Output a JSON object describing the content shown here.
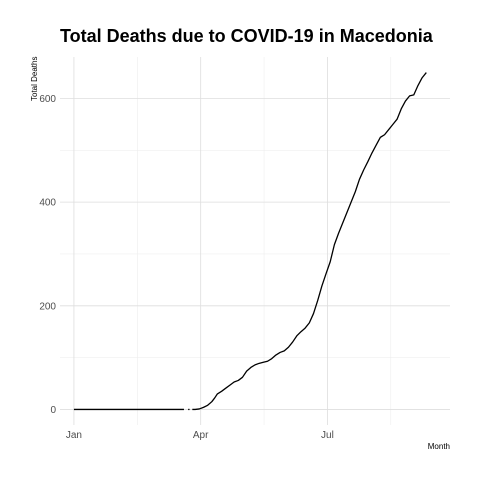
{
  "chart_data": {
    "type": "line",
    "title": "Total Deaths due to COVID-19 in Macedonia",
    "xlabel": "Month",
    "ylabel": "Total Deaths",
    "x_tick_labels": [
      "Jan",
      "Apr",
      "Jul"
    ],
    "x_ticks": [
      "2020-01-01",
      "2020-04-01",
      "2020-07-01"
    ],
    "y_ticks": [
      0,
      200,
      400,
      600
    ],
    "ylim": [
      -30,
      680
    ],
    "xlim": [
      "2019-12-22",
      "2020-09-27"
    ],
    "grid": true,
    "legend": "none",
    "series": [
      {
        "color": "#000000",
        "segments": [
          [
            [
              "2020-01-01",
              0
            ],
            [
              "2020-03-20",
              0
            ]
          ],
          [
            [
              "2020-03-23",
              0
            ],
            [
              "2020-03-24",
              0
            ]
          ],
          [
            [
              "2020-03-26",
              0
            ],
            [
              "2020-03-28",
              0
            ],
            [
              "2020-03-31",
              1
            ],
            [
              "2020-04-03",
              4
            ],
            [
              "2020-04-06",
              8
            ],
            [
              "2020-04-09",
              15
            ],
            [
              "2020-04-11",
              22
            ],
            [
              "2020-04-13",
              30
            ],
            [
              "2020-04-16",
              35
            ],
            [
              "2020-04-19",
              41
            ],
            [
              "2020-04-22",
              47
            ],
            [
              "2020-04-25",
              53
            ],
            [
              "2020-04-28",
              56
            ],
            [
              "2020-05-01",
              62
            ],
            [
              "2020-05-04",
              74
            ],
            [
              "2020-05-07",
              81
            ],
            [
              "2020-05-10",
              86
            ],
            [
              "2020-05-13",
              89
            ],
            [
              "2020-05-16",
              91
            ],
            [
              "2020-05-19",
              93
            ],
            [
              "2020-05-22",
              98
            ],
            [
              "2020-05-25",
              105
            ],
            [
              "2020-05-28",
              110
            ],
            [
              "2020-05-31",
              113
            ],
            [
              "2020-06-03",
              120
            ],
            [
              "2020-06-06",
              130
            ],
            [
              "2020-06-09",
              142
            ],
            [
              "2020-06-12",
              150
            ],
            [
              "2020-06-15",
              157
            ],
            [
              "2020-06-18",
              167
            ],
            [
              "2020-06-21",
              185
            ],
            [
              "2020-06-24",
              210
            ],
            [
              "2020-06-27",
              238
            ],
            [
              "2020-06-30",
              262
            ],
            [
              "2020-07-03",
              285
            ],
            [
              "2020-07-06",
              318
            ],
            [
              "2020-07-09",
              340
            ],
            [
              "2020-07-12",
              360
            ],
            [
              "2020-07-15",
              380
            ],
            [
              "2020-07-18",
              400
            ],
            [
              "2020-07-21",
              420
            ],
            [
              "2020-07-24",
              444
            ],
            [
              "2020-07-27",
              462
            ],
            [
              "2020-07-30",
              478
            ],
            [
              "2020-08-02",
              495
            ],
            [
              "2020-08-05",
              510
            ],
            [
              "2020-08-08",
              525
            ],
            [
              "2020-08-11",
              530
            ],
            [
              "2020-08-14",
              540
            ],
            [
              "2020-08-17",
              550
            ],
            [
              "2020-08-20",
              560
            ],
            [
              "2020-08-23",
              580
            ],
            [
              "2020-08-26",
              595
            ],
            [
              "2020-08-29",
              605
            ],
            [
              "2020-09-01",
              607
            ],
            [
              "2020-09-04",
              625
            ],
            [
              "2020-09-07",
              640
            ],
            [
              "2020-09-10",
              650
            ]
          ]
        ]
      }
    ]
  }
}
